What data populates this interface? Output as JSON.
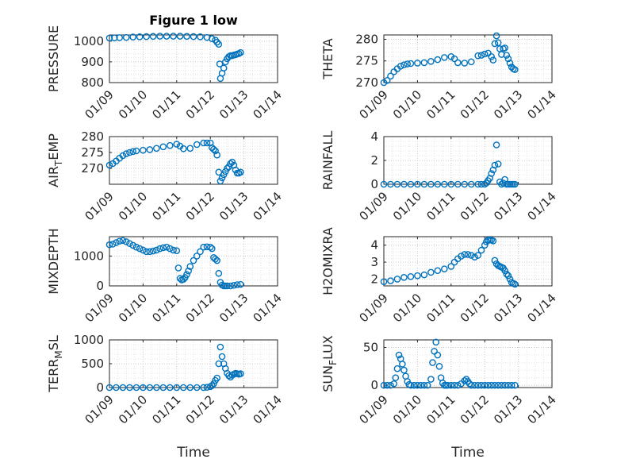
{
  "chart_data": [
    {
      "id": "pressure",
      "type": "scatter",
      "title": "Figure 1 low",
      "ylabel": "PRESSURE",
      "xlabel": "",
      "grid": true,
      "xlim": [
        0,
        5
      ],
      "xticks": [
        "01/09",
        "01/10",
        "01/11",
        "01/12",
        "01/13",
        "01/14"
      ],
      "ylim": [
        800,
        1030
      ],
      "yticks": [
        800,
        900,
        1000
      ],
      "x": [
        0.0,
        0.15,
        0.3,
        0.5,
        0.7,
        0.9,
        1.1,
        1.3,
        1.5,
        1.7,
        1.9,
        2.1,
        2.3,
        2.5,
        2.7,
        2.9,
        3.05,
        3.15,
        3.2,
        3.25,
        3.28,
        3.3,
        3.35,
        3.4,
        3.45,
        3.5,
        3.55,
        3.6,
        3.65,
        3.7,
        3.75,
        3.8,
        3.85,
        3.9
      ],
      "y": [
        1015,
        1016,
        1017,
        1018,
        1020,
        1021,
        1022,
        1023,
        1024,
        1024,
        1024,
        1024,
        1023,
        1022,
        1021,
        1018,
        1012,
        1005,
        995,
        985,
        890,
        820,
        845,
        870,
        900,
        915,
        925,
        930,
        930,
        933,
        935,
        938,
        940,
        945
      ]
    },
    {
      "id": "theta",
      "type": "scatter",
      "title": "",
      "ylabel": "THETA",
      "xlabel": "",
      "grid": true,
      "xlim": [
        0,
        5
      ],
      "xticks": [
        "01/09",
        "01/10",
        "01/11",
        "01/12",
        "01/13",
        "01/14"
      ],
      "ylim": [
        270,
        281
      ],
      "yticks": [
        270,
        275,
        280
      ],
      "x": [
        0.0,
        0.1,
        0.2,
        0.3,
        0.4,
        0.5,
        0.6,
        0.7,
        0.8,
        1.0,
        1.2,
        1.4,
        1.6,
        1.8,
        2.0,
        2.1,
        2.2,
        2.4,
        2.6,
        2.8,
        2.9,
        3.0,
        3.1,
        3.2,
        3.25,
        3.3,
        3.35,
        3.4,
        3.45,
        3.5,
        3.55,
        3.6,
        3.65,
        3.7,
        3.75,
        3.8,
        3.85,
        3.9
      ],
      "y": [
        270.0,
        270.5,
        271.5,
        272.5,
        273.2,
        273.8,
        274.1,
        274.3,
        274.4,
        274.5,
        274.6,
        274.9,
        275.3,
        275.8,
        276.0,
        275.5,
        274.6,
        274.5,
        274.8,
        276.2,
        276.3,
        276.6,
        276.8,
        276.0,
        275.2,
        279.0,
        280.8,
        279.2,
        277.8,
        276.5,
        277.8,
        278.0,
        276.3,
        275.5,
        274.5,
        273.6,
        273.2,
        273.0
      ]
    },
    {
      "id": "air_temp",
      "type": "scatter",
      "title": "",
      "ylabel": "AIR_TEMP",
      "xlabel": "",
      "grid": true,
      "xlim": [
        0,
        5
      ],
      "xticks": [
        "01/09",
        "01/10",
        "01/11",
        "01/12",
        "01/13",
        "01/14"
      ],
      "ylim": [
        265,
        280
      ],
      "yticks": [
        270,
        275,
        280
      ],
      "x": [
        0.0,
        0.1,
        0.2,
        0.3,
        0.4,
        0.5,
        0.6,
        0.7,
        0.8,
        1.0,
        1.2,
        1.4,
        1.6,
        1.8,
        2.0,
        2.1,
        2.2,
        2.4,
        2.6,
        2.8,
        2.9,
        3.0,
        3.05,
        3.1,
        3.15,
        3.2,
        3.25,
        3.3,
        3.35,
        3.4,
        3.45,
        3.5,
        3.55,
        3.6,
        3.65,
        3.7,
        3.75,
        3.8,
        3.85,
        3.9
      ],
      "y": [
        271.0,
        271.5,
        272.3,
        273.2,
        274.0,
        274.6,
        275.0,
        275.3,
        275.5,
        275.7,
        275.9,
        276.3,
        276.8,
        277.2,
        277.6,
        277.0,
        276.2,
        276.3,
        277.5,
        278.0,
        278.0,
        278.0,
        276.5,
        276.0,
        275.5,
        274.2,
        268.8,
        266.0,
        267.0,
        268.0,
        269.0,
        270.0,
        270.5,
        271.5,
        272.0,
        271.0,
        269.5,
        268.5,
        268.5,
        268.8
      ]
    },
    {
      "id": "rainfall",
      "type": "scatter",
      "title": "",
      "ylabel": "RAINFALL",
      "xlabel": "",
      "grid": true,
      "xlim": [
        0,
        5
      ],
      "xticks": [
        "01/09",
        "01/10",
        "01/11",
        "01/12",
        "01/13",
        "01/14"
      ],
      "ylim": [
        0,
        4
      ],
      "yticks": [
        0,
        2,
        4
      ],
      "x": [
        0.0,
        0.2,
        0.4,
        0.6,
        0.8,
        1.0,
        1.2,
        1.4,
        1.6,
        1.8,
        2.0,
        2.2,
        2.4,
        2.6,
        2.8,
        2.9,
        3.0,
        3.05,
        3.1,
        3.15,
        3.2,
        3.25,
        3.3,
        3.35,
        3.4,
        3.45,
        3.5,
        3.55,
        3.6,
        3.65,
        3.7,
        3.75,
        3.8,
        3.85,
        3.9
      ],
      "y": [
        0,
        0,
        0,
        0,
        0,
        0,
        0,
        0,
        0,
        0,
        0,
        0,
        0,
        0,
        0,
        0,
        0,
        0.1,
        0.3,
        0.5,
        0.9,
        1.2,
        1.6,
        3.3,
        1.7,
        0.2,
        0,
        0.1,
        0.4,
        0,
        0,
        0,
        0,
        0,
        0
      ]
    },
    {
      "id": "mixdepth",
      "type": "scatter",
      "title": "",
      "ylabel": "MIXDEPTH",
      "xlabel": "",
      "grid": true,
      "xlim": [
        0,
        5
      ],
      "xticks": [
        "01/09",
        "01/10",
        "01/11",
        "01/12",
        "01/13",
        "01/14"
      ],
      "ylim": [
        0,
        1650
      ],
      "yticks": [
        0,
        1000
      ],
      "x": [
        0.0,
        0.1,
        0.2,
        0.3,
        0.4,
        0.5,
        0.6,
        0.7,
        0.8,
        0.9,
        1.0,
        1.1,
        1.2,
        1.3,
        1.4,
        1.5,
        1.6,
        1.7,
        1.8,
        1.9,
        2.0,
        2.05,
        2.1,
        2.15,
        2.2,
        2.25,
        2.3,
        2.35,
        2.4,
        2.5,
        2.6,
        2.7,
        2.8,
        2.9,
        3.0,
        3.05,
        3.1,
        3.15,
        3.2,
        3.25,
        3.3,
        3.35,
        3.4,
        3.45,
        3.5,
        3.6,
        3.7,
        3.8,
        3.9
      ],
      "y": [
        1380,
        1400,
        1450,
        1500,
        1520,
        1480,
        1420,
        1360,
        1300,
        1250,
        1200,
        1150,
        1150,
        1170,
        1200,
        1250,
        1280,
        1300,
        1250,
        1200,
        1180,
        600,
        250,
        200,
        220,
        280,
        380,
        500,
        650,
        850,
        1000,
        1150,
        1300,
        1310,
        1300,
        1250,
        950,
        900,
        850,
        420,
        120,
        30,
        0,
        0,
        0,
        0,
        20,
        40,
        50
      ]
    },
    {
      "id": "h2omixra",
      "type": "scatter",
      "title": "",
      "ylabel": "H2OMIXRA",
      "xlabel": "",
      "grid": true,
      "xlim": [
        0,
        5
      ],
      "xticks": [
        "01/09",
        "01/10",
        "01/11",
        "01/12",
        "01/13",
        "01/14"
      ],
      "ylim": [
        1.6,
        4.5
      ],
      "yticks": [
        2,
        3,
        4
      ],
      "x": [
        0.0,
        0.2,
        0.4,
        0.6,
        0.8,
        1.0,
        1.2,
        1.4,
        1.6,
        1.8,
        2.0,
        2.1,
        2.2,
        2.3,
        2.4,
        2.5,
        2.6,
        2.7,
        2.8,
        2.9,
        3.0,
        3.05,
        3.1,
        3.15,
        3.2,
        3.25,
        3.3,
        3.35,
        3.4,
        3.45,
        3.5,
        3.55,
        3.6,
        3.65,
        3.7,
        3.75,
        3.8,
        3.85,
        3.9
      ],
      "y": [
        1.85,
        1.9,
        2.0,
        2.1,
        2.15,
        2.2,
        2.25,
        2.4,
        2.5,
        2.6,
        2.75,
        3.0,
        3.2,
        3.35,
        3.45,
        3.45,
        3.4,
        3.3,
        3.4,
        3.7,
        4.0,
        4.2,
        4.3,
        4.3,
        4.3,
        4.25,
        3.1,
        2.9,
        2.8,
        2.75,
        2.7,
        2.65,
        2.5,
        2.3,
        2.2,
        2.0,
        1.8,
        1.75,
        1.7
      ]
    },
    {
      "id": "terr_msl",
      "type": "scatter",
      "title": "",
      "ylabel": "TERR_MSL",
      "xlabel": "Time",
      "grid": true,
      "xlim": [
        0,
        5
      ],
      "xticks": [
        "01/09",
        "01/10",
        "01/11",
        "01/12",
        "01/13",
        "01/14"
      ],
      "ylim": [
        0,
        1000
      ],
      "yticks": [
        0,
        500,
        1000
      ],
      "x": [
        0.0,
        0.2,
        0.4,
        0.6,
        0.8,
        1.0,
        1.2,
        1.4,
        1.6,
        1.8,
        2.0,
        2.2,
        2.4,
        2.6,
        2.8,
        2.9,
        3.0,
        3.05,
        3.1,
        3.15,
        3.2,
        3.25,
        3.3,
        3.35,
        3.4,
        3.45,
        3.5,
        3.55,
        3.6,
        3.65,
        3.7,
        3.75,
        3.8,
        3.85,
        3.9
      ],
      "y": [
        0,
        0,
        0,
        0,
        0,
        0,
        0,
        0,
        0,
        0,
        0,
        0,
        0,
        0,
        0,
        5,
        20,
        40,
        80,
        150,
        200,
        500,
        850,
        650,
        500,
        400,
        300,
        250,
        220,
        260,
        280,
        300,
        290,
        280,
        290
      ]
    },
    {
      "id": "sun_flux",
      "type": "scatter",
      "title": "",
      "ylabel": "SUN_FLUX",
      "xlabel": "Time",
      "grid": true,
      "xlim": [
        0,
        5
      ],
      "xticks": [
        "01/09",
        "01/10",
        "01/11",
        "01/12",
        "01/13",
        "01/14"
      ],
      "ylim": [
        -3,
        60
      ],
      "yticks": [
        0,
        50
      ],
      "x": [
        0.0,
        0.1,
        0.2,
        0.3,
        0.35,
        0.4,
        0.45,
        0.5,
        0.55,
        0.6,
        0.65,
        0.7,
        0.75,
        0.8,
        0.9,
        1.0,
        1.1,
        1.2,
        1.3,
        1.4,
        1.45,
        1.5,
        1.55,
        1.6,
        1.65,
        1.7,
        1.75,
        1.8,
        1.85,
        1.9,
        2.0,
        2.1,
        2.2,
        2.3,
        2.4,
        2.45,
        2.5,
        2.55,
        2.6,
        2.7,
        2.8,
        2.9,
        3.0,
        3.1,
        3.2,
        3.3,
        3.4,
        3.5,
        3.6,
        3.7,
        3.8,
        3.9
      ],
      "y": [
        0,
        0,
        0,
        2,
        10,
        22,
        40,
        35,
        28,
        20,
        12,
        5,
        1,
        0,
        0,
        0,
        0,
        0,
        0,
        8,
        30,
        45,
        57,
        40,
        25,
        10,
        3,
        0,
        0,
        0,
        0,
        0,
        0,
        2,
        6,
        8,
        5,
        2,
        0,
        0,
        0,
        0,
        0,
        0,
        0,
        0,
        0,
        0,
        0,
        0,
        0,
        0
      ]
    }
  ]
}
